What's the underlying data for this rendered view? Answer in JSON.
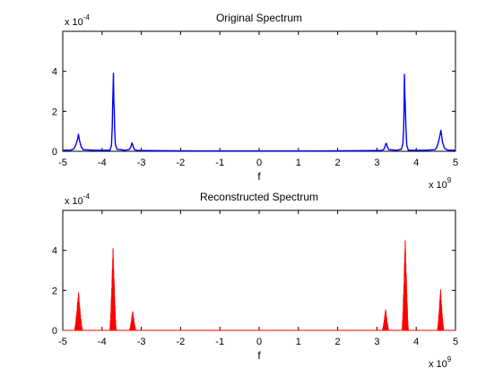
{
  "figure_background": "#ffffff",
  "chart_data": [
    {
      "type": "line",
      "title": "Original Spectrum",
      "xlabel": "f",
      "ylabel": "",
      "x_multiplier": {
        "base": "x 10",
        "exp": "9"
      },
      "y_multiplier": {
        "base": "x 10",
        "exp": "-4"
      },
      "xlim": [
        -5,
        5
      ],
      "ylim": [
        0,
        6
      ],
      "x_ticks": [
        "-5",
        "-4",
        "-3",
        "-2",
        "-1",
        "0",
        "1",
        "2",
        "3",
        "4",
        "5"
      ],
      "y_ticks": [
        "0",
        "2",
        "4"
      ],
      "grid": false,
      "legend": "none",
      "color": "#0000ff",
      "series": [
        {
          "x": [
            -5.0,
            -4.8,
            -4.72,
            -4.67,
            -4.63,
            -4.6,
            -4.57,
            -4.53,
            -4.48,
            -4.2,
            -3.8,
            -3.76,
            -3.74,
            -3.73,
            -3.72,
            -3.71,
            -3.7,
            -3.69,
            -3.68,
            -3.66,
            -3.62,
            -3.4,
            -3.3,
            -3.26,
            -3.24,
            -3.22,
            -3.2,
            -3.17,
            -3.1,
            -2.5,
            -1.5,
            0.0,
            1.5,
            2.5,
            3.1,
            3.17,
            3.2,
            3.22,
            3.24,
            3.26,
            3.3,
            3.5,
            3.62,
            3.66,
            3.68,
            3.69,
            3.7,
            3.71,
            3.72,
            3.74,
            3.76,
            3.8,
            4.2,
            4.48,
            4.53,
            4.57,
            4.6,
            4.63,
            4.67,
            4.72,
            4.8,
            5.0
          ],
          "y": [
            0.05,
            0.06,
            0.12,
            0.3,
            0.55,
            0.85,
            0.5,
            0.22,
            0.08,
            0.05,
            0.05,
            0.3,
            1.2,
            2.3,
            3.0,
            3.9,
            2.6,
            2.1,
            1.1,
            0.35,
            0.1,
            0.05,
            0.1,
            0.25,
            0.42,
            0.35,
            0.2,
            0.08,
            0.04,
            0.03,
            0.02,
            0.02,
            0.02,
            0.03,
            0.04,
            0.08,
            0.2,
            0.35,
            0.4,
            0.25,
            0.08,
            0.05,
            0.1,
            0.35,
            1.1,
            2.1,
            3.85,
            2.8,
            2.4,
            1.1,
            0.3,
            0.05,
            0.05,
            0.08,
            0.22,
            0.5,
            0.75,
            1.05,
            0.45,
            0.15,
            0.06,
            0.05
          ]
        }
      ]
    },
    {
      "type": "area",
      "title": "Reconstructed Spectrum",
      "xlabel": "f",
      "ylabel": "",
      "x_multiplier": {
        "base": "x 10",
        "exp": "9"
      },
      "y_multiplier": {
        "base": "x 10",
        "exp": "-4"
      },
      "xlim": [
        -5,
        5
      ],
      "ylim": [
        0,
        6
      ],
      "x_ticks": [
        "-5",
        "-4",
        "-3",
        "-2",
        "-1",
        "0",
        "1",
        "2",
        "3",
        "4",
        "5"
      ],
      "y_ticks": [
        "0",
        "2",
        "4"
      ],
      "grid": false,
      "legend": "none",
      "color": "#ff0000",
      "peaks": [
        {
          "center": -4.6,
          "half_width": 0.1,
          "max": 1.9
        },
        {
          "center": -3.72,
          "half_width": 0.08,
          "max": 4.1
        },
        {
          "center": -3.22,
          "half_width": 0.08,
          "max": 0.95
        },
        {
          "center": 3.22,
          "half_width": 0.08,
          "max": 1.05
        },
        {
          "center": 3.72,
          "half_width": 0.08,
          "max": 4.5
        },
        {
          "center": 4.62,
          "half_width": 0.08,
          "max": 2.05
        }
      ]
    }
  ]
}
